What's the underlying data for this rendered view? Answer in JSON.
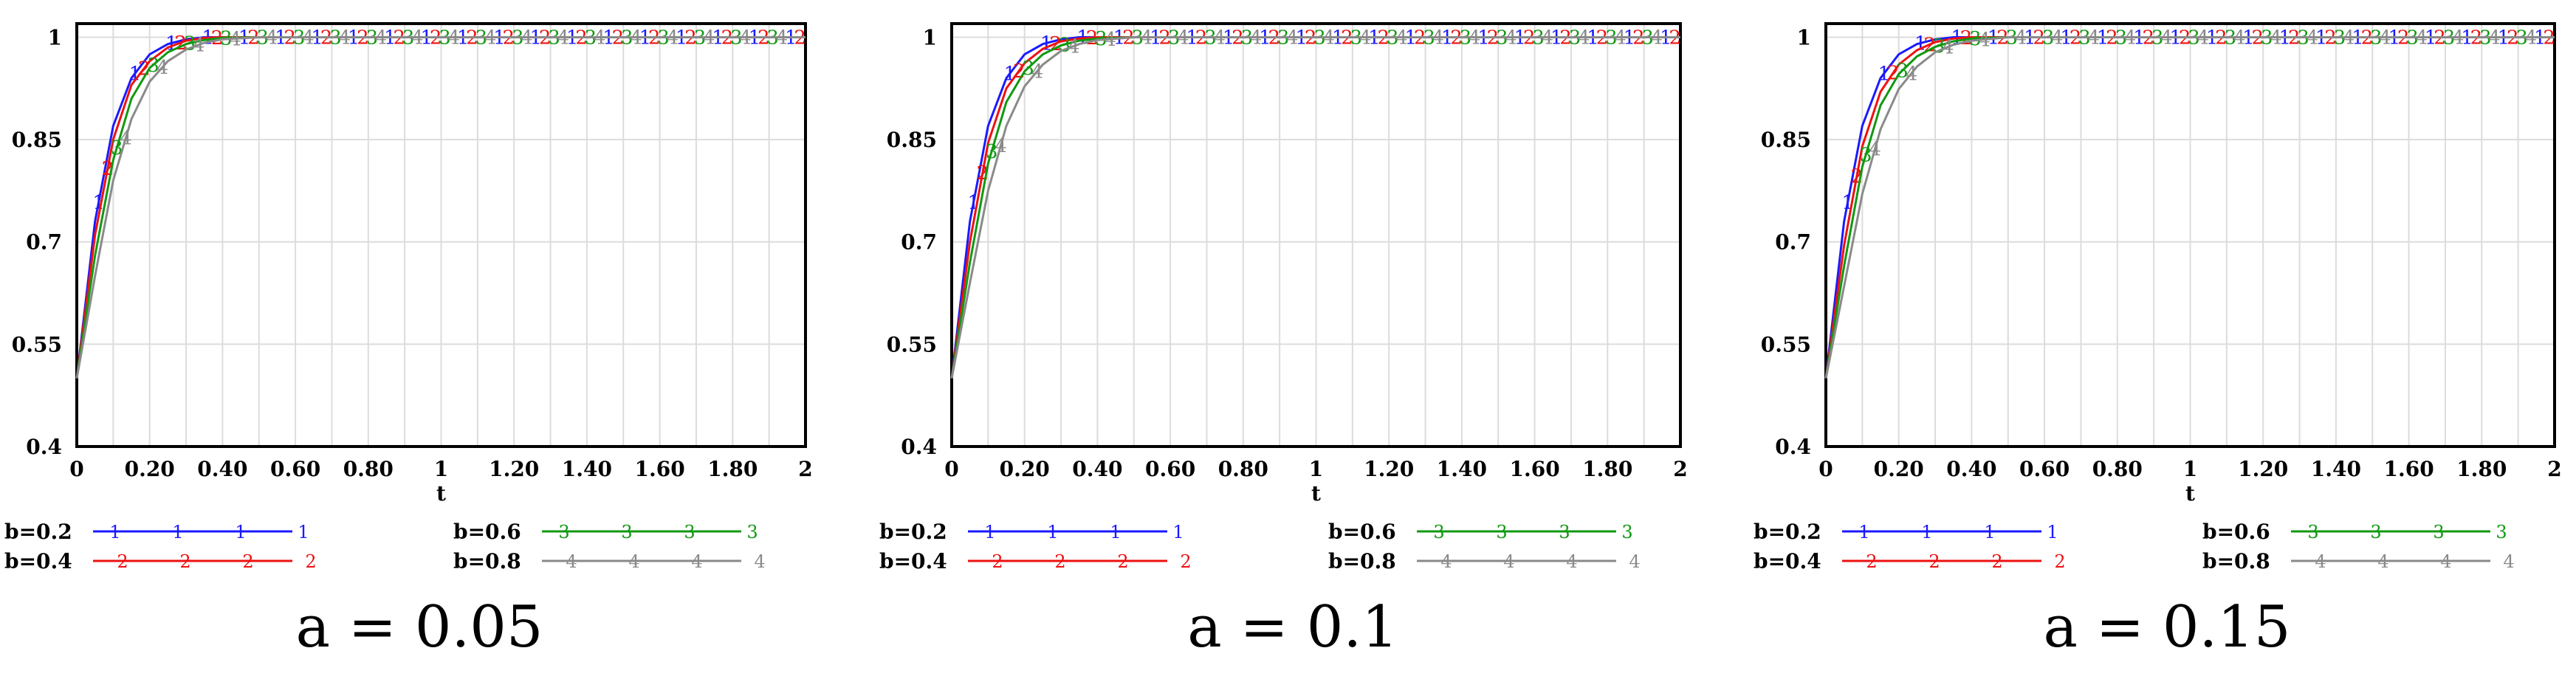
{
  "chart_data": [
    {
      "type": "line",
      "title": "a = 0.05",
      "xlabel": "t",
      "ylabel": "",
      "xlim": [
        0,
        2
      ],
      "ylim": [
        0.4,
        1.02
      ],
      "grid": true,
      "legend_placement": "bottom",
      "x_ticks": [
        0,
        0.2,
        0.4,
        0.6,
        0.8,
        1,
        1.2,
        1.4,
        1.6,
        1.8,
        2
      ],
      "x_tick_labels": [
        "0",
        "0.20",
        "0.40",
        "0.60",
        "0.80",
        "1",
        "1.20",
        "1.40",
        "1.60",
        "1.80",
        "2"
      ],
      "y_ticks": [
        0.4,
        0.55,
        0.7,
        0.85,
        1
      ],
      "y_tick_labels": [
        "0.4",
        "0.55",
        "0.7",
        "0.85",
        "1"
      ],
      "series": [
        {
          "name": "b=0.2",
          "marker": "1",
          "color": "#1a1aff",
          "x": [
            0,
            0.05,
            0.1,
            0.15,
            0.2,
            0.25,
            0.3,
            0.35,
            0.4,
            0.5,
            0.6,
            0.8,
            1,
            1.2,
            1.4,
            1.6,
            1.8,
            2
          ],
          "values": [
            0.5,
            0.73,
            0.87,
            0.94,
            0.975,
            0.99,
            0.997,
            1,
            1,
            1,
            1,
            1,
            1,
            1,
            1,
            1,
            1,
            1
          ]
        },
        {
          "name": "b=0.4",
          "marker": "2",
          "color": "#ee1111",
          "x": [
            0,
            0.05,
            0.1,
            0.15,
            0.2,
            0.25,
            0.3,
            0.35,
            0.4,
            0.5,
            0.6,
            0.8,
            1,
            1.2,
            1.4,
            1.6,
            1.8,
            2
          ],
          "values": [
            0.5,
            0.71,
            0.85,
            0.93,
            0.965,
            0.985,
            0.995,
            0.999,
            1,
            1,
            1,
            1,
            1,
            1,
            1,
            1,
            1,
            1
          ]
        },
        {
          "name": "b=0.6",
          "marker": "3",
          "color": "#119911",
          "x": [
            0,
            0.05,
            0.1,
            0.15,
            0.2,
            0.25,
            0.3,
            0.35,
            0.4,
            0.5,
            0.6,
            0.8,
            1,
            1.2,
            1.4,
            1.6,
            1.8,
            2
          ],
          "values": [
            0.5,
            0.68,
            0.82,
            0.91,
            0.955,
            0.978,
            0.99,
            0.996,
            0.999,
            1,
            1,
            1,
            1,
            1,
            1,
            1,
            1,
            1
          ]
        },
        {
          "name": "b=0.8",
          "marker": "4",
          "color": "#8a8a8a",
          "x": [
            0,
            0.05,
            0.1,
            0.15,
            0.2,
            0.25,
            0.3,
            0.35,
            0.4,
            0.5,
            0.6,
            0.8,
            1,
            1.2,
            1.4,
            1.6,
            1.8,
            2
          ],
          "values": [
            0.5,
            0.65,
            0.79,
            0.88,
            0.935,
            0.965,
            0.982,
            0.992,
            0.997,
            1,
            1,
            1,
            1,
            1,
            1,
            1,
            1,
            1
          ]
        }
      ]
    },
    {
      "type": "line",
      "title": "a = 0.1",
      "xlabel": "t",
      "ylabel": "",
      "xlim": [
        0,
        2
      ],
      "ylim": [
        0.4,
        1.02
      ],
      "grid": true,
      "legend_placement": "bottom",
      "x_ticks": [
        0,
        0.2,
        0.4,
        0.6,
        0.8,
        1,
        1.2,
        1.4,
        1.6,
        1.8,
        2
      ],
      "x_tick_labels": [
        "0",
        "0.20",
        "0.40",
        "0.60",
        "0.80",
        "1",
        "1.20",
        "1.40",
        "1.60",
        "1.80",
        "2"
      ],
      "y_ticks": [
        0.4,
        0.55,
        0.7,
        0.85,
        1
      ],
      "y_tick_labels": [
        "0.4",
        "0.55",
        "0.7",
        "0.85",
        "1"
      ],
      "series": [
        {
          "name": "b=0.2",
          "marker": "1",
          "color": "#1a1aff",
          "x": [
            0,
            0.05,
            0.1,
            0.15,
            0.2,
            0.25,
            0.3,
            0.35,
            0.4,
            0.5,
            0.6,
            0.8,
            1,
            1.2,
            1.4,
            1.6,
            1.8,
            2
          ],
          "values": [
            0.5,
            0.73,
            0.87,
            0.94,
            0.975,
            0.99,
            0.997,
            1,
            1,
            1,
            1,
            1,
            1,
            1,
            1,
            1,
            1,
            1
          ]
        },
        {
          "name": "b=0.4",
          "marker": "2",
          "color": "#ee1111",
          "x": [
            0,
            0.05,
            0.1,
            0.15,
            0.2,
            0.25,
            0.3,
            0.35,
            0.4,
            0.5,
            0.6,
            0.8,
            1,
            1.2,
            1.4,
            1.6,
            1.8,
            2
          ],
          "values": [
            0.5,
            0.7,
            0.845,
            0.925,
            0.962,
            0.983,
            0.994,
            0.998,
            1,
            1,
            1,
            1,
            1,
            1,
            1,
            1,
            1,
            1
          ]
        },
        {
          "name": "b=0.6",
          "marker": "3",
          "color": "#119911",
          "x": [
            0,
            0.05,
            0.1,
            0.15,
            0.2,
            0.25,
            0.3,
            0.35,
            0.4,
            0.5,
            0.6,
            0.8,
            1,
            1.2,
            1.4,
            1.6,
            1.8,
            2
          ],
          "values": [
            0.5,
            0.67,
            0.815,
            0.905,
            0.95,
            0.975,
            0.988,
            0.995,
            0.998,
            1,
            1,
            1,
            1,
            1,
            1,
            1,
            1,
            1
          ]
        },
        {
          "name": "b=0.8",
          "marker": "4",
          "color": "#8a8a8a",
          "x": [
            0,
            0.05,
            0.1,
            0.15,
            0.2,
            0.25,
            0.3,
            0.35,
            0.4,
            0.5,
            0.6,
            0.8,
            1,
            1.2,
            1.4,
            1.6,
            1.8,
            2
          ],
          "values": [
            0.5,
            0.64,
            0.775,
            0.87,
            0.928,
            0.96,
            0.98,
            0.99,
            0.996,
            1,
            1,
            1,
            1,
            1,
            1,
            1,
            1,
            1
          ]
        }
      ]
    },
    {
      "type": "line",
      "title": "a = 0.15",
      "xlabel": "t",
      "ylabel": "",
      "xlim": [
        0,
        2
      ],
      "ylim": [
        0.4,
        1.02
      ],
      "grid": true,
      "legend_placement": "bottom",
      "x_ticks": [
        0,
        0.2,
        0.4,
        0.6,
        0.8,
        1,
        1.2,
        1.4,
        1.6,
        1.8,
        2
      ],
      "x_tick_labels": [
        "0",
        "0.20",
        "0.40",
        "0.60",
        "0.80",
        "1",
        "1.20",
        "1.40",
        "1.60",
        "1.80",
        "2"
      ],
      "y_ticks": [
        0.4,
        0.55,
        0.7,
        0.85,
        1
      ],
      "y_tick_labels": [
        "0.4",
        "0.55",
        "0.7",
        "0.85",
        "1"
      ],
      "series": [
        {
          "name": "b=0.2",
          "marker": "1",
          "color": "#1a1aff",
          "x": [
            0,
            0.05,
            0.1,
            0.15,
            0.2,
            0.25,
            0.3,
            0.35,
            0.4,
            0.5,
            0.6,
            0.8,
            1,
            1.2,
            1.4,
            1.6,
            1.8,
            2
          ],
          "values": [
            0.5,
            0.73,
            0.87,
            0.94,
            0.975,
            0.99,
            0.997,
            1,
            1,
            1,
            1,
            1,
            1,
            1,
            1,
            1,
            1,
            1
          ]
        },
        {
          "name": "b=0.4",
          "marker": "2",
          "color": "#ee1111",
          "x": [
            0,
            0.05,
            0.1,
            0.15,
            0.2,
            0.25,
            0.3,
            0.35,
            0.4,
            0.5,
            0.6,
            0.8,
            1,
            1.2,
            1.4,
            1.6,
            1.8,
            2
          ],
          "values": [
            0.5,
            0.695,
            0.84,
            0.92,
            0.96,
            0.981,
            0.993,
            0.998,
            1,
            1,
            1,
            1,
            1,
            1,
            1,
            1,
            1,
            1
          ]
        },
        {
          "name": "b=0.6",
          "marker": "3",
          "color": "#119911",
          "x": [
            0,
            0.05,
            0.1,
            0.15,
            0.2,
            0.25,
            0.3,
            0.35,
            0.4,
            0.5,
            0.6,
            0.8,
            1,
            1.2,
            1.4,
            1.6,
            1.8,
            2
          ],
          "values": [
            0.5,
            0.665,
            0.81,
            0.9,
            0.946,
            0.972,
            0.986,
            0.994,
            0.998,
            1,
            1,
            1,
            1,
            1,
            1,
            1,
            1,
            1
          ]
        },
        {
          "name": "b=0.8",
          "marker": "4",
          "color": "#8a8a8a",
          "x": [
            0,
            0.05,
            0.1,
            0.15,
            0.2,
            0.25,
            0.3,
            0.35,
            0.4,
            0.5,
            0.6,
            0.8,
            1,
            1.2,
            1.4,
            1.6,
            1.8,
            2
          ],
          "values": [
            0.5,
            0.635,
            0.77,
            0.865,
            0.924,
            0.957,
            0.978,
            0.989,
            0.995,
            1,
            1,
            1,
            1,
            1,
            1,
            1,
            1,
            1
          ]
        }
      ]
    }
  ]
}
